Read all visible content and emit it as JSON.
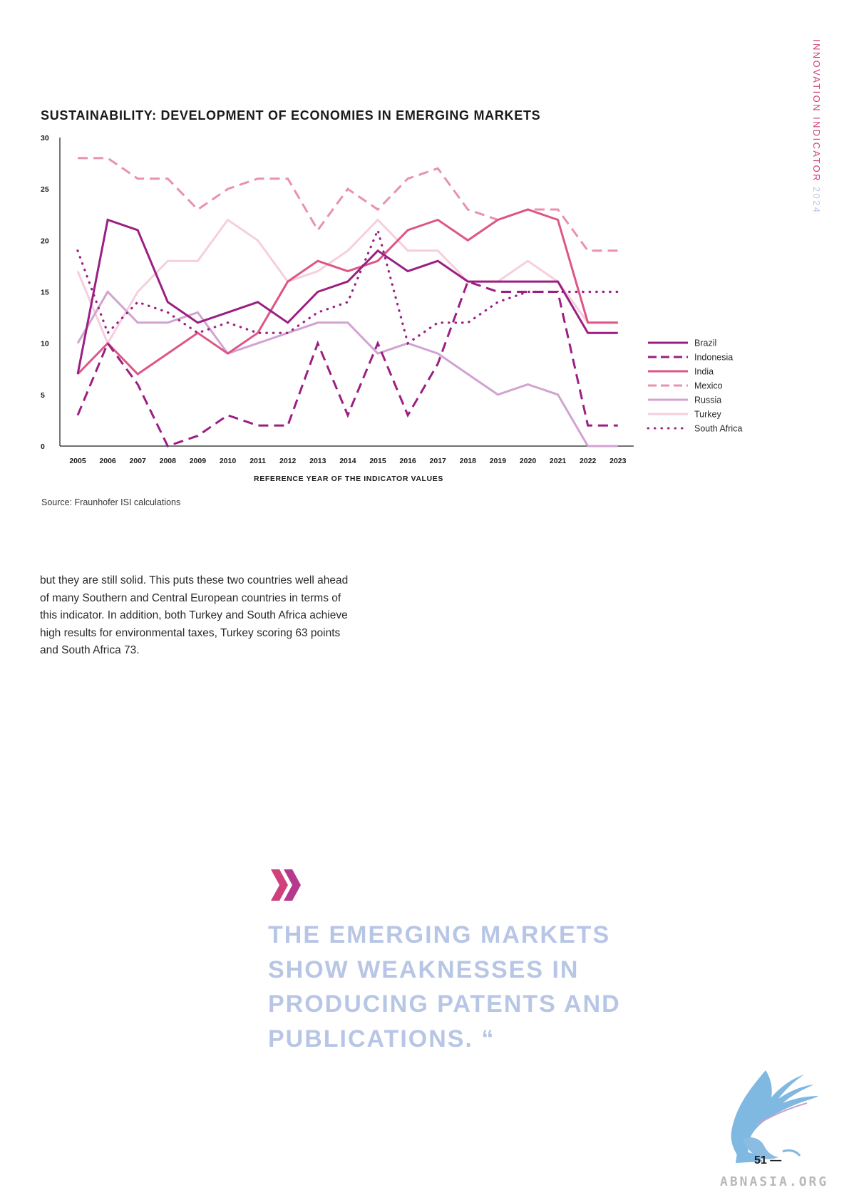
{
  "side_title": {
    "part1": "INNOVATION INDICATOR",
    "part2": "2024"
  },
  "chart_data": {
    "type": "line",
    "title": "SUSTAINABILITY: DEVELOPMENT OF ECONOMIES IN EMERGING MARKETS",
    "xlabel": "REFERENCE YEAR OF THE INDICATOR VALUES",
    "ylabel": "",
    "ylim": [
      0,
      30
    ],
    "yticks": [
      "0",
      "5",
      "10",
      "15",
      "20",
      "25",
      "30"
    ],
    "x": [
      "2005",
      "2006",
      "2007",
      "2008",
      "2009",
      "2010",
      "2011",
      "2012",
      "2013",
      "2014",
      "2015",
      "2016",
      "2017",
      "2018",
      "2019",
      "2020",
      "2021",
      "2022",
      "2023"
    ],
    "legend_position": "right",
    "grid": false,
    "series": [
      {
        "name": "Brazil",
        "color": "#9b1f83",
        "dash": "solid",
        "values": [
          7,
          22,
          21,
          14,
          12,
          13,
          14,
          12,
          15,
          16,
          19,
          17,
          18,
          16,
          16,
          16,
          16,
          11,
          11
        ]
      },
      {
        "name": "Indonesia",
        "color": "#9b1f83",
        "dash": "dashed",
        "values": [
          3,
          10,
          6,
          0,
          1,
          3,
          2,
          2,
          10,
          3,
          10,
          3,
          8,
          16,
          15,
          15,
          15,
          2,
          2
        ]
      },
      {
        "name": "India",
        "color": "#de5685",
        "dash": "solid",
        "values": [
          7,
          10,
          7,
          9,
          11,
          9,
          11,
          16,
          18,
          17,
          18,
          21,
          22,
          20,
          22,
          23,
          22,
          12,
          12
        ]
      },
      {
        "name": "Mexico",
        "color": "#e892ad",
        "dash": "dashed",
        "values": [
          28,
          28,
          26,
          26,
          23,
          25,
          26,
          26,
          21,
          25,
          23,
          26,
          27,
          23,
          22,
          23,
          23,
          19,
          19
        ]
      },
      {
        "name": "Russia",
        "color": "#d1a3d1",
        "dash": "solid",
        "values": [
          10,
          15,
          12,
          12,
          13,
          9,
          10,
          11,
          12,
          12,
          9,
          10,
          9,
          7,
          5,
          6,
          5,
          0,
          0
        ]
      },
      {
        "name": "Turkey",
        "color": "#f6cfdd",
        "dash": "solid",
        "values": [
          17,
          10,
          15,
          18,
          18,
          22,
          20,
          16,
          17,
          19,
          22,
          19,
          19,
          16,
          16,
          18,
          16,
          12,
          12
        ]
      },
      {
        "name": "South Africa",
        "color": "#9b1f83",
        "dash": "dotted",
        "values": [
          19,
          11,
          14,
          13,
          11,
          12,
          11,
          11,
          13,
          14,
          21,
          10,
          12,
          12,
          14,
          15,
          15,
          15,
          15
        ]
      }
    ]
  },
  "source": "Source: Fraunhofer ISI calculations",
  "body_text": "but they are still solid. This puts these two countries well ahead of many Southern and Central European countries in terms of this indicator. In addition, both Turkey and South Africa achieve high results for environmental taxes, Turkey scoring 63 points and South Africa 73.",
  "quote": "THE EMERGING MARKETS SHOW WEAKNESSES IN PRODUCING PATENTS AND PUBLICATIONS. “",
  "page_number": "51 —",
  "watermark": "ABNASIA.ORG",
  "colors": {
    "accent_pink": "#d0407c",
    "quote_blue": "#b8c6e6",
    "logo_blue": "#7fb8e0"
  }
}
